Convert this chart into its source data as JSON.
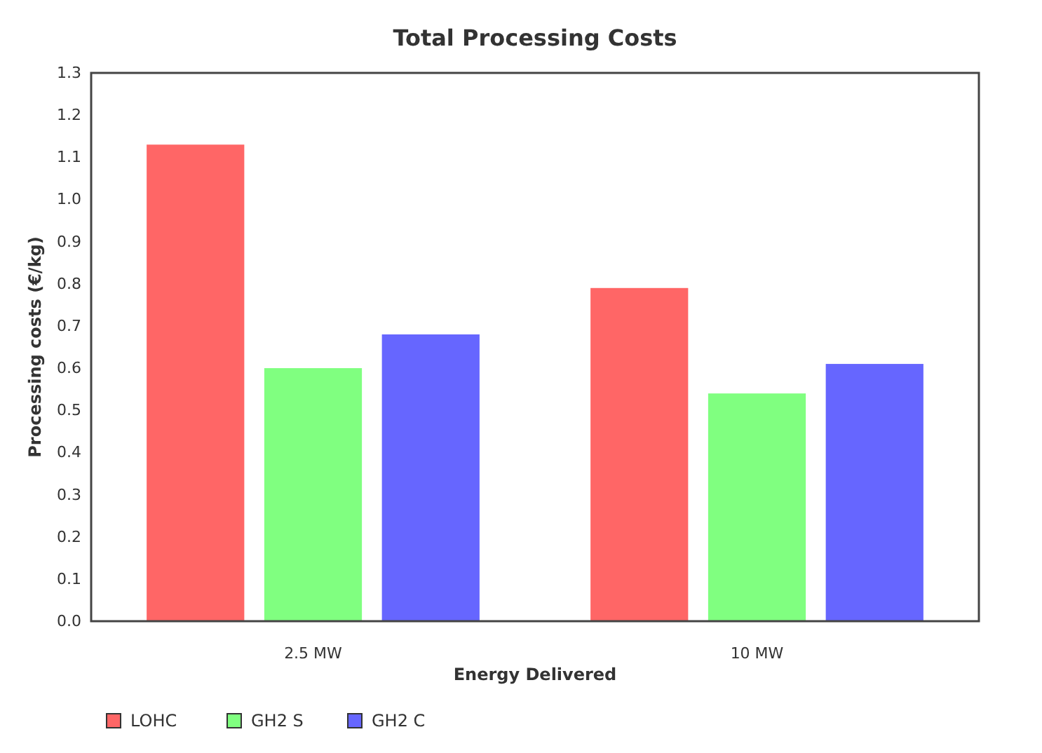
{
  "chart_data": {
    "type": "bar",
    "title": "Total Processing Costs",
    "xlabel": "Energy Delivered",
    "ylabel": "Processing costs (€/kg)",
    "categories": [
      "2.5 MW",
      "10 MW"
    ],
    "series": [
      {
        "name": "LOHC",
        "color": "#ff6666",
        "values": [
          1.13,
          0.79
        ]
      },
      {
        "name": "GH2 S",
        "color": "#80ff80",
        "values": [
          0.6,
          0.54
        ]
      },
      {
        "name": "GH2 C",
        "color": "#6666ff",
        "values": [
          0.68,
          0.61
        ]
      }
    ],
    "ylim": [
      0,
      1.3
    ],
    "yticks": [
      {
        "value": 0,
        "label": "0.0"
      },
      0.1,
      0.2,
      0.3,
      0.4,
      0.5,
      0.6,
      0.7,
      0.8,
      0.9,
      {
        "value": 1,
        "label": "1.0"
      },
      1.1,
      1.2,
      1.3
    ],
    "grid": false,
    "legend": "bottom left"
  }
}
